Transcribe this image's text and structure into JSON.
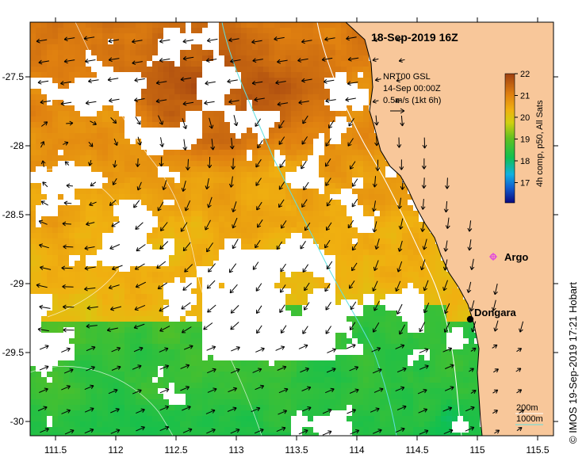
{
  "map": {
    "title": "18-Sep-2019 16Z",
    "vector_info": {
      "line1": "NRT00 GSL",
      "line2": "14-Sep 00:00Z",
      "line3": "0.5m/s (1kt 6h)"
    },
    "colorbar": {
      "label": "4h comp, p50, All Sats",
      "min": 16.3,
      "max": 22,
      "ticks": [
        "22",
        "21",
        "20",
        "19",
        "18",
        "17"
      ]
    },
    "x_ticks": [
      "111.5",
      "112",
      "112.5",
      "113",
      "113.5",
      "114",
      "114.5",
      "115",
      "115.5"
    ],
    "y_ticks": [
      "-27.5",
      "-28",
      "-28.5",
      "-29",
      "-29.5",
      "-30"
    ],
    "places": {
      "argo_label": "Argo",
      "dongara_label": "Dongara"
    },
    "bathymetry_legend": {
      "contour_200": "200m",
      "contour_1000": "1000m"
    },
    "credit": "© IMOS 19-Sep-2019 17:21 Hobart",
    "colors": {
      "land": "#f8c79a",
      "ocean_bg": "#ffffff",
      "contour_200": "#ffffff",
      "contour_1000": "#5fe0e0",
      "argo": "#e040e0"
    }
  }
}
